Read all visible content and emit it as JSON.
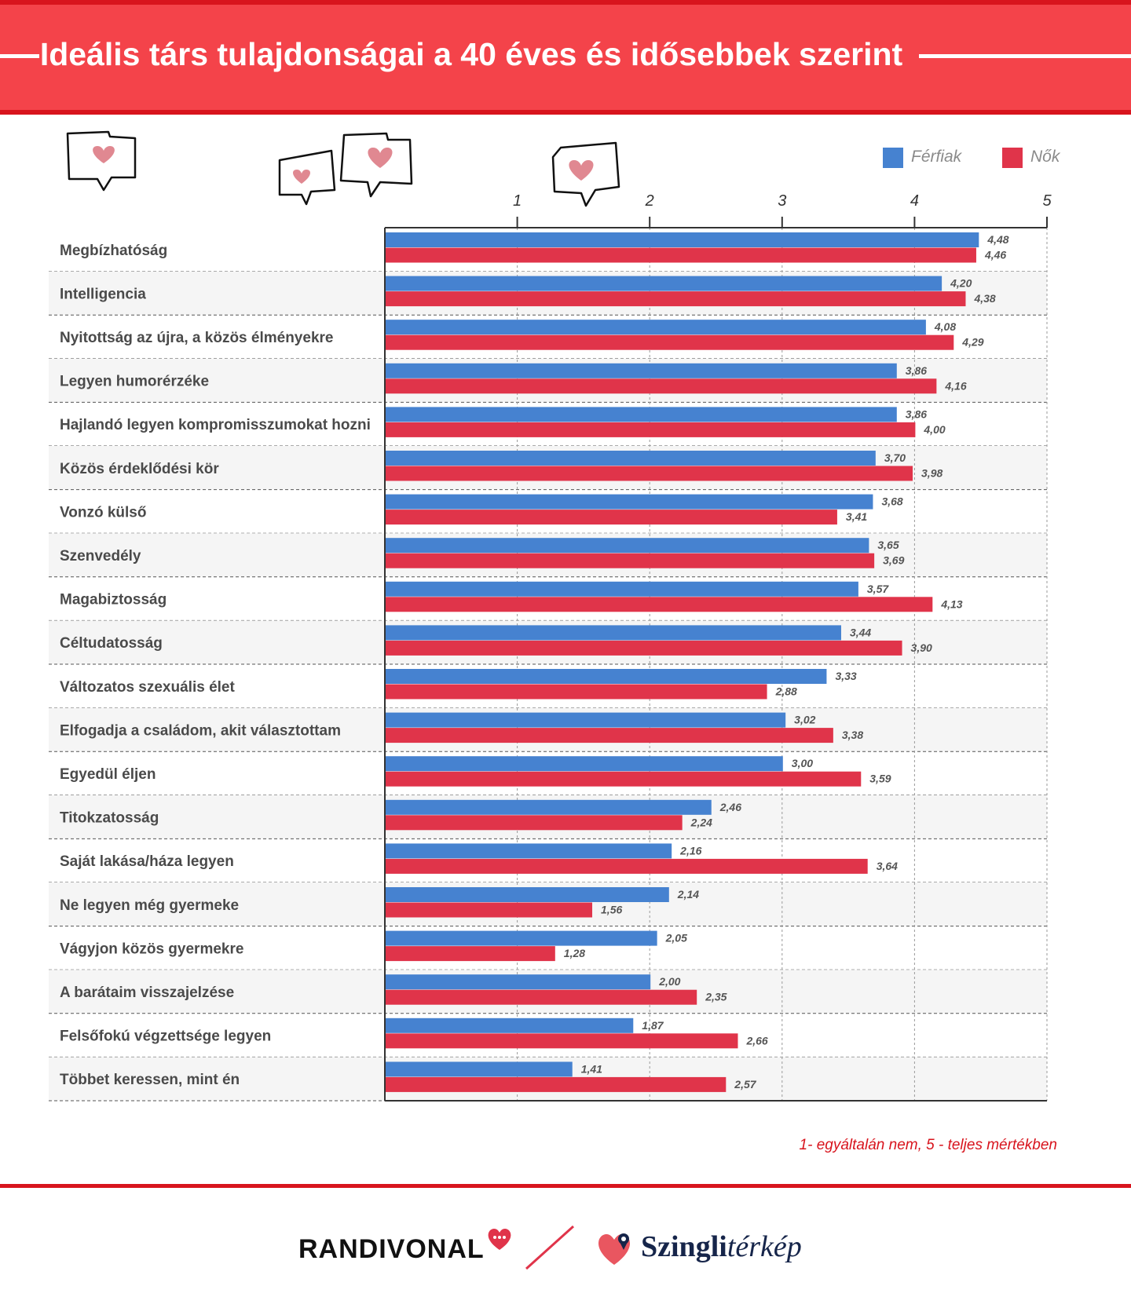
{
  "header": {
    "title": "Ideális társ tulajdonságai a 40 éves és idősebbek szerint"
  },
  "legend": [
    {
      "label": "Férfiak",
      "color": "#4682d0"
    },
    {
      "label": "Nők",
      "color": "#e0344a"
    }
  ],
  "note": "1- egyáltalán nem, 5 - teljes mértékben",
  "logos": {
    "left": "RANDIVONAL",
    "right_bold": "Szingli",
    "right_italic": "térkép"
  },
  "icons": [
    "chat-heart-icon",
    "chat-heart-icon",
    "chat-heart-icon",
    "chat-heart-icon"
  ],
  "chart_data": {
    "type": "bar",
    "orientation": "horizontal",
    "categories": [
      "Megbízhatóság",
      "Intelligencia",
      "Nyitottság az újra, a közös élményekre",
      "Legyen humorérzéke",
      "Hajlandó legyen kompromisszumokat hozni",
      "Közös érdeklődési kör",
      "Vonzó külső",
      "Szenvedély",
      "Magabiztosság",
      "Céltudatosság",
      "Változatos szexuális élet",
      "Elfogadja a családom, akit választottam",
      "Egyedül éljen",
      "Titokzatosság",
      "Saját lakása/háza legyen",
      "Ne legyen még gyermeke",
      "Vágyjon közös gyermekre",
      "A barátaim visszajelzése",
      "Felsőfokú végzettsége legyen",
      "Többet keressen, mint én"
    ],
    "series": [
      {
        "name": "Férfiak",
        "color": "#4682d0",
        "values": [
          4.48,
          4.2,
          4.08,
          3.86,
          3.86,
          3.7,
          3.68,
          3.65,
          3.57,
          3.44,
          3.33,
          3.02,
          3.0,
          2.46,
          2.16,
          2.14,
          2.05,
          2.0,
          1.87,
          1.41
        ],
        "labels": [
          "4,48",
          "4,20",
          "4,08",
          "3,86",
          "3,86",
          "3,70",
          "3,68",
          "3,65",
          "3,57",
          "3,44",
          "3,33",
          "3,02",
          "3,00",
          "2,46",
          "2,16",
          "2,14",
          "2,05",
          "2,00",
          "1,87",
          "1,41"
        ]
      },
      {
        "name": "Nők",
        "color": "#e0344a",
        "values": [
          4.46,
          4.38,
          4.29,
          4.16,
          4.0,
          3.98,
          3.41,
          3.69,
          4.13,
          3.9,
          2.88,
          3.38,
          3.59,
          2.24,
          3.64,
          1.56,
          1.28,
          2.35,
          2.66,
          2.57
        ],
        "labels": [
          "4,46",
          "4,38",
          "4,29",
          "4,16",
          "4,00",
          "3,98",
          "3,41",
          "3,69",
          "4,13",
          "3,90",
          "2,88",
          "3,38",
          "3,59",
          "2,24",
          "3,64",
          "1,56",
          "1,28",
          "2,35",
          "2,66",
          "2,57"
        ]
      }
    ],
    "xlim": [
      0,
      5
    ],
    "xticks": [
      "1",
      "2",
      "3",
      "4",
      "5"
    ],
    "grid": true
  }
}
